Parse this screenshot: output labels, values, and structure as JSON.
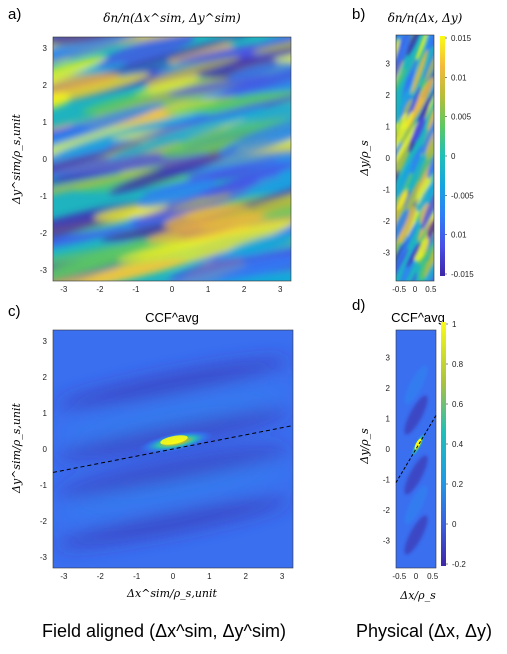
{
  "panels": {
    "a": {
      "label": "a)",
      "title": "δn/n(Δx^sim, Δy^sim)",
      "ylabel": "Δy^sim/ρ_s,unit",
      "xlabel": ""
    },
    "b": {
      "label": "b)",
      "title": "δn/n(Δx, Δy)",
      "ylabel": "Δy/ρ_s",
      "xlabel": ""
    },
    "c": {
      "label": "c)",
      "title": "CCF^avg",
      "ylabel": "Δy^sim/ρ_s,unit",
      "xlabel": "Δx^sim/ρ_s,unit"
    },
    "d": {
      "label": "d)",
      "title": "CCF^avg",
      "ylabel": "Δy/ρ_s",
      "xlabel": "Δx/ρ_s"
    }
  },
  "captions": {
    "left": "Field aligned (Δx^sim, Δy^sim)",
    "right": "Physical (Δx, Δy)"
  },
  "colors": {
    "colormap": [
      "#3e26a8",
      "#4750e6",
      "#2f7df6",
      "#16a4e0",
      "#1fbfb8",
      "#5cc862",
      "#b7bd3a",
      "#f5ba3d",
      "#f9fb15"
    ],
    "dashed_line": "#000000"
  },
  "chart_data": [
    {
      "type": "heatmap",
      "id": "a",
      "title": "δn/n(Δx^sim, Δy^sim)",
      "ylabel": "Δy^sim/ρ_s,unit",
      "xlim": [
        -3.3,
        3.3
      ],
      "ylim": [
        -3.3,
        3.3
      ],
      "xticks": [
        "-3",
        "-2",
        "-1",
        "0",
        "1",
        "2",
        "3"
      ],
      "yticks": [
        "3",
        "2",
        "1",
        "0",
        "-1",
        "-2",
        "-3"
      ]
    },
    {
      "type": "heatmap",
      "id": "b",
      "title": "δn/n(Δx, Δy)",
      "ylabel": "Δy/ρ_s",
      "xlim": [
        -0.6,
        0.6
      ],
      "ylim": [
        -3.9,
        3.9
      ],
      "xticks": [
        "-0.5",
        "0",
        "0.5"
      ],
      "yticks": [
        "3",
        "2",
        "1",
        "0",
        "-1",
        "-2",
        "-3"
      ],
      "colorbar_ticks": [
        "0.015",
        "0.01",
        "0.005",
        "0",
        "-0.005",
        "0.01",
        "-0.015"
      ]
    },
    {
      "type": "heatmap",
      "id": "c",
      "title": "CCF^avg",
      "xlabel": "Δx^sim/ρ_s,unit",
      "ylabel": "Δy^sim/ρ_s,unit",
      "xlim": [
        -3.3,
        3.3
      ],
      "ylim": [
        -3.3,
        3.3
      ],
      "xticks": [
        "-3",
        "-2",
        "-1",
        "0",
        "1",
        "2",
        "3"
      ],
      "yticks": [
        "3",
        "2",
        "1",
        "0",
        "-1",
        "-2",
        "-3"
      ],
      "dashed_line": {
        "x": [
          -3.3,
          3.3
        ],
        "y": [
          -0.65,
          0.65
        ]
      }
    },
    {
      "type": "heatmap",
      "id": "d",
      "title": "CCF^avg",
      "xlabel": "Δx/ρ_s",
      "ylabel": "Δy/ρ_s",
      "xlim": [
        -0.6,
        0.6
      ],
      "ylim": [
        -3.9,
        3.9
      ],
      "xticks": [
        "-0.5",
        "0",
        "0.5"
      ],
      "yticks": [
        "3",
        "2",
        "1",
        "0",
        "-1",
        "-2",
        "-3"
      ],
      "colorbar_ticks": [
        "1",
        "0.8",
        "0.6",
        "0.4",
        "0.2",
        "0",
        "-0.2"
      ],
      "colorbar_range": [
        -0.2,
        1.0
      ],
      "dashed_line": {
        "x": [
          -0.6,
          0.6
        ],
        "y": [
          -1.1,
          1.1
        ]
      }
    }
  ]
}
